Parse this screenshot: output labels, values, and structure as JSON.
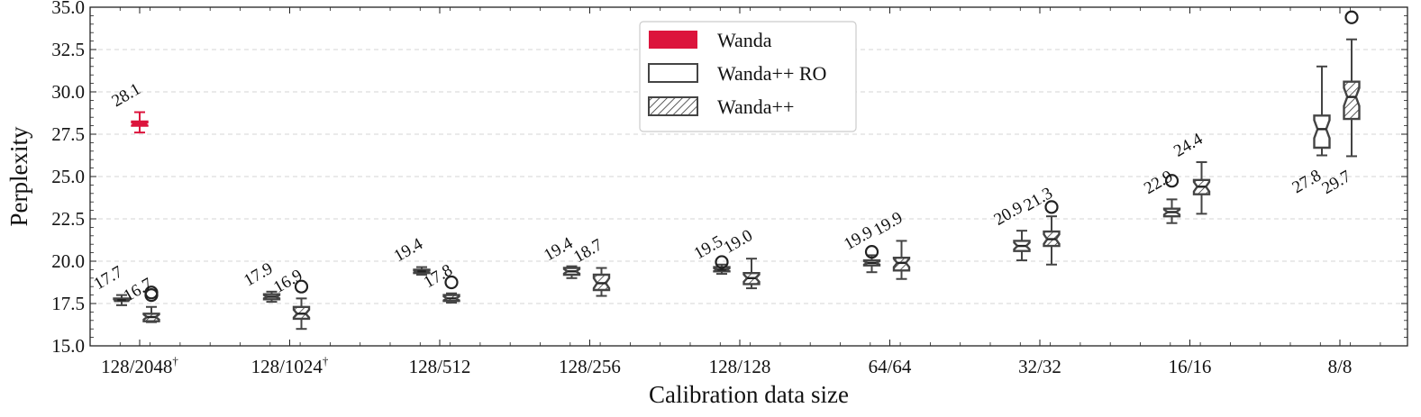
{
  "chart_data": {
    "type": "boxplot",
    "xlabel": "Calibration data size",
    "ylabel": "Perplexity",
    "ylim": [
      15.0,
      35.0
    ],
    "yticks": [
      15.0,
      17.5,
      20.0,
      22.5,
      25.0,
      27.5,
      30.0,
      32.5,
      35.0
    ],
    "ytick_labels": [
      "15.0",
      "17.5",
      "20.0",
      "22.5",
      "25.0",
      "27.5",
      "30.0",
      "32.5",
      "35.0"
    ],
    "grid": "horizontal dashed",
    "legend_position": "top-center",
    "categories": [
      {
        "label": "128/2048",
        "mark": "†"
      },
      {
        "label": "128/1024",
        "mark": "†"
      },
      {
        "label": "128/512",
        "mark": ""
      },
      {
        "label": "128/256",
        "mark": ""
      },
      {
        "label": "128/128",
        "mark": ""
      },
      {
        "label": "64/64",
        "mark": ""
      },
      {
        "label": "32/32",
        "mark": ""
      },
      {
        "label": "16/16",
        "mark": ""
      },
      {
        "label": "8/8",
        "mark": ""
      }
    ],
    "series": [
      {
        "name": "Wanda",
        "color": "#dc143c",
        "style": "filled",
        "boxes": [
          {
            "category": 0,
            "whislo": 27.6,
            "q1": 28.0,
            "med": 28.1,
            "q3": 28.25,
            "whishi": 28.8,
            "fliers": [],
            "label": "28.1",
            "label_pos": "above"
          }
        ]
      },
      {
        "name": "Wanda++ RO",
        "color": "#444444",
        "style": "outline",
        "boxes": [
          {
            "category": 0,
            "whislo": 17.4,
            "q1": 17.65,
            "med": 17.7,
            "q3": 17.8,
            "whishi": 18.0,
            "fliers": [],
            "label": "17.7",
            "label_pos": "above"
          },
          {
            "category": 1,
            "whislo": 17.6,
            "q1": 17.75,
            "med": 17.9,
            "q3": 18.05,
            "whishi": 18.2,
            "fliers": [],
            "label": "17.9",
            "label_pos": "above"
          },
          {
            "category": 2,
            "whislo": 19.2,
            "q1": 19.3,
            "med": 19.4,
            "q3": 19.5,
            "whishi": 19.65,
            "fliers": [],
            "label": "19.4",
            "label_pos": "above"
          },
          {
            "category": 3,
            "whislo": 19.0,
            "q1": 19.2,
            "med": 19.4,
            "q3": 19.6,
            "whishi": 19.7,
            "fliers": [],
            "label": "19.4",
            "label_pos": "above"
          },
          {
            "category": 4,
            "whislo": 19.25,
            "q1": 19.4,
            "med": 19.5,
            "q3": 19.65,
            "whishi": 19.8,
            "fliers": [
              19.95
            ],
            "label": "19.5",
            "label_pos": "above"
          },
          {
            "category": 5,
            "whislo": 19.35,
            "q1": 19.75,
            "med": 19.9,
            "q3": 20.05,
            "whishi": 20.35,
            "fliers": [
              20.55
            ],
            "label": "19.9",
            "label_pos": "above"
          },
          {
            "category": 6,
            "whislo": 20.05,
            "q1": 20.6,
            "med": 20.9,
            "q3": 21.2,
            "whishi": 21.8,
            "fliers": [],
            "label": "20.9",
            "label_pos": "above"
          },
          {
            "category": 7,
            "whislo": 22.25,
            "q1": 22.65,
            "med": 22.9,
            "q3": 23.1,
            "whishi": 23.65,
            "fliers": [
              24.75
            ],
            "label": "22.9",
            "label_pos": "above"
          },
          {
            "category": 8,
            "whislo": 26.25,
            "q1": 26.7,
            "med": 27.8,
            "q3": 28.6,
            "whishi": 31.5,
            "fliers": [],
            "label": "27.8",
            "label_pos": "below"
          }
        ]
      },
      {
        "name": "Wanda++",
        "color": "#444444",
        "style": "hatched",
        "boxes": [
          {
            "category": 0,
            "whislo": 16.4,
            "q1": 16.45,
            "med": 16.7,
            "q3": 16.9,
            "whishi": 17.3,
            "fliers": [
              18.0,
              18.15
            ],
            "label": "16.7",
            "label_pos": "above"
          },
          {
            "category": 1,
            "whislo": 16.0,
            "q1": 16.6,
            "med": 16.9,
            "q3": 17.3,
            "whishi": 17.8,
            "fliers": [
              18.5
            ],
            "label": "16.9",
            "label_pos": "above"
          },
          {
            "category": 2,
            "whislo": 17.55,
            "q1": 17.65,
            "med": 17.8,
            "q3": 18.0,
            "whishi": 18.1,
            "fliers": [
              18.75
            ],
            "label": "17.8",
            "label_pos": "above"
          },
          {
            "category": 3,
            "whislo": 17.95,
            "q1": 18.3,
            "med": 18.7,
            "q3": 19.2,
            "whishi": 19.6,
            "fliers": [],
            "label": "18.7",
            "label_pos": "above"
          },
          {
            "category": 4,
            "whislo": 18.4,
            "q1": 18.65,
            "med": 19.0,
            "q3": 19.3,
            "whishi": 20.15,
            "fliers": [],
            "label": "19.0",
            "label_pos": "above"
          },
          {
            "category": 5,
            "whislo": 18.95,
            "q1": 19.45,
            "med": 19.9,
            "q3": 20.2,
            "whishi": 21.2,
            "fliers": [],
            "label": "19.9",
            "label_pos": "above"
          },
          {
            "category": 6,
            "whislo": 19.8,
            "q1": 20.9,
            "med": 21.3,
            "q3": 21.75,
            "whishi": 22.65,
            "fliers": [
              23.2
            ],
            "label": "21.3",
            "label_pos": "above"
          },
          {
            "category": 7,
            "whislo": 22.8,
            "q1": 23.95,
            "med": 24.4,
            "q3": 24.8,
            "whishi": 25.85,
            "fliers": [],
            "label": "24.4",
            "label_pos": "above"
          },
          {
            "category": 8,
            "whislo": 26.2,
            "q1": 28.4,
            "med": 29.7,
            "q3": 30.6,
            "whishi": 33.1,
            "fliers": [
              34.4
            ],
            "label": "29.7",
            "label_pos": "below"
          }
        ]
      }
    ]
  }
}
